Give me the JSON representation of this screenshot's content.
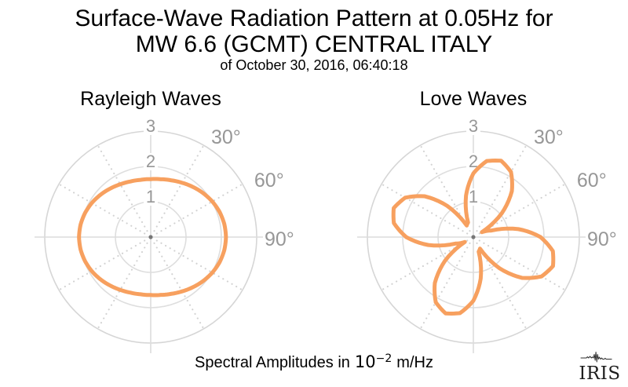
{
  "header": {
    "title_line1": "Surface-Wave Radiation Pattern at 0.05Hz for",
    "title_line2": "MW 6.6 (GCMT) CENTRAL ITALY",
    "subtitle": "of October 30, 2016, 06:40:18"
  },
  "caption": {
    "prefix": "Spectral Amplitudes in",
    "base": "10",
    "exponent": "−2",
    "suffix": "m/Hz"
  },
  "logo": {
    "text": "IRIS",
    "icon": "seismogram-trace-icon"
  },
  "colors": {
    "curve": "#F7A05F",
    "grid_circle": "#DEDEDE",
    "grid_circle_outer": "#D6D6D6",
    "grid_axis": "#DCDCDC",
    "grid_dotted": "#D2D2D2",
    "tick_label": "#979797",
    "center_dot": "#777777",
    "title_text": "#000000"
  },
  "chart_data": [
    {
      "type": "polar-line",
      "title": "Rayleigh Waves",
      "r_axis": {
        "ticks": [
          1,
          2,
          3
        ],
        "max": 3
      },
      "angle_axis": {
        "labels": [
          "30°",
          "60°",
          "90°"
        ],
        "label_degs": [
          30,
          60,
          90
        ],
        "solid_spokes_deg": [
          0,
          90,
          180,
          270
        ],
        "dotted_spokes_deg": [
          30,
          60,
          120,
          150,
          210,
          240,
          300,
          330
        ]
      },
      "series": [
        {
          "name": "rayleigh-radiation-amplitude",
          "color": "#F7A05F",
          "azimuth_start_deg": 0,
          "azimuth_step_deg": 10,
          "r": [
            1.64,
            1.662,
            1.709,
            1.775,
            1.854,
            1.936,
            2.013,
            2.076,
            2.116,
            2.13,
            2.116,
            2.076,
            2.013,
            1.936,
            1.854,
            1.775,
            1.709,
            1.662,
            1.64,
            1.645,
            1.674,
            1.725,
            1.79,
            1.86,
            1.927,
            1.981,
            2.017,
            2.03,
            2.017,
            1.981,
            1.927,
            1.86,
            1.79,
            1.725,
            1.674,
            1.645
          ]
        }
      ],
      "amplitude_units": "10^-2 m/Hz"
    },
    {
      "type": "polar-line",
      "title": "Love Waves",
      "r_axis": {
        "ticks": [
          1,
          2,
          3
        ],
        "max": 3
      },
      "angle_axis": {
        "labels": [
          "30°",
          "60°",
          "90°"
        ],
        "label_degs": [
          30,
          60,
          90
        ],
        "solid_spokes_deg": [
          0,
          90,
          180,
          270
        ],
        "dotted_spokes_deg": [
          30,
          60,
          120,
          150,
          210,
          240,
          300,
          330
        ]
      },
      "series": [
        {
          "name": "love-radiation-amplitude",
          "color": "#F7A05F",
          "azimuth_start_deg": 0,
          "azimuth_step_deg": 10,
          "r": [
            1.802,
            2.185,
            2.299,
            2.129,
            1.696,
            1.053,
            0.277,
            0.539,
            1.295,
            1.902,
            2.285,
            2.399,
            2.229,
            1.796,
            1.153,
            0.377,
            0.439,
            1.195,
            1.802,
            2.185,
            2.299,
            2.129,
            1.696,
            1.053,
            0.277,
            0.539,
            1.295,
            1.902,
            2.285,
            2.399,
            2.229,
            1.796,
            1.153,
            0.377,
            0.439,
            1.195
          ]
        }
      ],
      "amplitude_units": "10^-2 m/Hz"
    }
  ]
}
